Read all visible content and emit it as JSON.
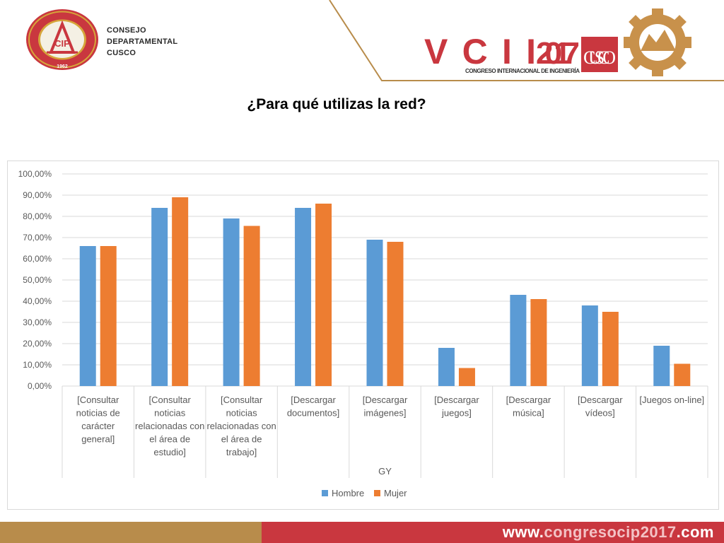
{
  "header": {
    "org_lines": [
      "CONSEJO",
      "DEPARTAMENTAL",
      "CUSCO"
    ],
    "seal_ring_text": "COLEGIO DE INGENIEROS DEL PERÚ",
    "seal_year": "1962",
    "seal_mark": "CIP",
    "event_mark": "VCII",
    "event_year": "2017",
    "event_city": "CUSCO",
    "event_subtitle": "CONGRESO INTERNACIONAL DE INGENIERÍA"
  },
  "slide_title": "¿Para qué utilizas la red?",
  "footer": {
    "url_prefix": "www.",
    "url_mid": "congresocip2017",
    "url_suffix": ".com"
  },
  "colors": {
    "hombre": "#5b9bd5",
    "mujer": "#ed7d31",
    "grid": "#d9d9d9",
    "axis_text": "#595959",
    "footer_gold": "#b88c4b",
    "footer_red": "#c9373f"
  },
  "chart_data": {
    "type": "bar",
    "categories": [
      [
        "[Consultar",
        "noticias de",
        "carácter",
        "general]"
      ],
      [
        "[Consultar",
        "noticias",
        "relacionadas con",
        "el área de",
        "estudio]"
      ],
      [
        "[Consultar",
        "noticias",
        "relacionadas con",
        "el área de",
        "trabajo]"
      ],
      [
        "[Descargar",
        "documentos]"
      ],
      [
        "[Descargar",
        "imágenes]"
      ],
      [
        "[Descargar",
        "juegos]"
      ],
      [
        "[Descargar",
        "música]"
      ],
      [
        "[Descargar",
        "vídeos]"
      ],
      [
        "[Juegos on-line]"
      ]
    ],
    "series": [
      {
        "name": "Hombre",
        "values": [
          0.66,
          0.84,
          0.79,
          0.84,
          0.69,
          0.18,
          0.43,
          0.38,
          0.19
        ]
      },
      {
        "name": "Mujer",
        "values": [
          0.66,
          0.89,
          0.755,
          0.86,
          0.68,
          0.085,
          0.41,
          0.35,
          0.105
        ]
      }
    ],
    "yticks": [
      "0,00%",
      "10,00%",
      "20,00%",
      "30,00%",
      "40,00%",
      "50,00%",
      "60,00%",
      "70,00%",
      "80,00%",
      "90,00%",
      "100,00%"
    ],
    "ylim": [
      0,
      1
    ],
    "xlabel": "GY",
    "ylabel": "",
    "title": "",
    "grid": true,
    "legend": "bottom"
  }
}
